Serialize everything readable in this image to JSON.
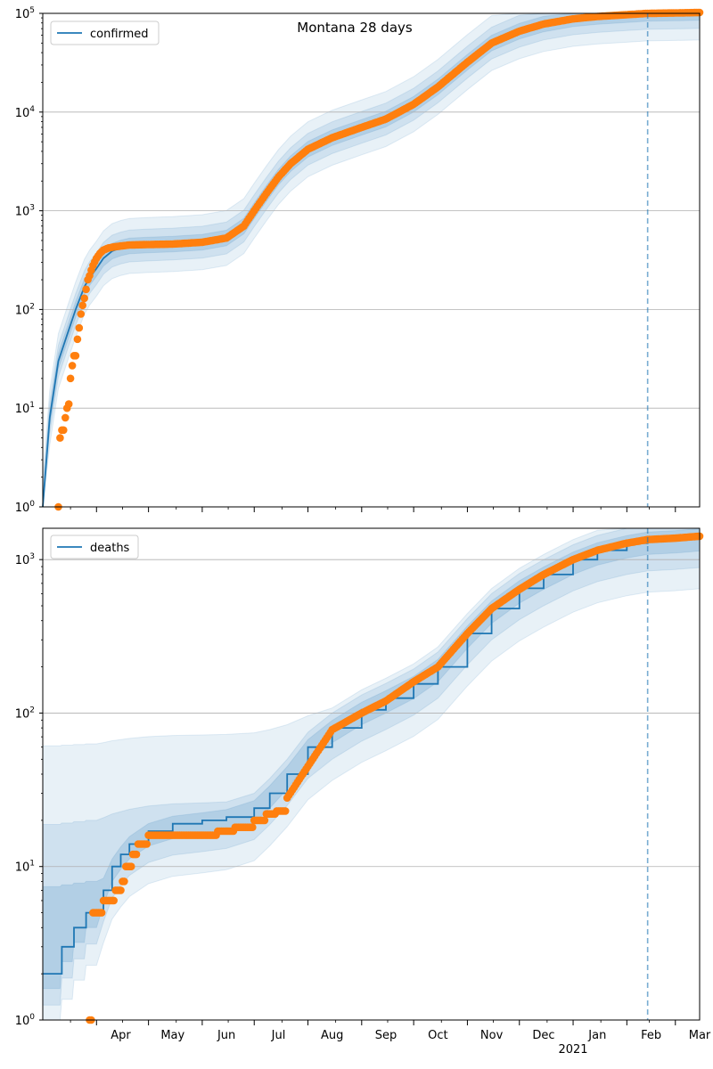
{
  "figure": {
    "title": "Montana 28 days",
    "year_label": "2021"
  },
  "chart_data": [
    {
      "type": "line",
      "panel": "top",
      "yscale": "log",
      "ylim": [
        1,
        100000
      ],
      "xlim": [
        "2020-03-01",
        "2021-03-15"
      ],
      "ytick_labels": [
        "10^0",
        "10^1",
        "10^2",
        "10^3",
        "10^4",
        "10^5"
      ],
      "ytick_values": [
        1,
        10,
        100,
        1000,
        10000,
        100000
      ],
      "xtick_labels": [
        "Apr",
        "May",
        "Jun",
        "Jul",
        "Aug",
        "Sep",
        "Oct",
        "Nov",
        "Dec",
        "Jan",
        "Feb",
        "Mar"
      ],
      "xtick_dates": [
        "2020-04-01",
        "2020-05-01",
        "2020-06-01",
        "2020-07-01",
        "2020-08-01",
        "2020-09-01",
        "2020-10-01",
        "2020-11-01",
        "2020-12-01",
        "2021-01-01",
        "2021-02-01",
        "2021-03-01"
      ],
      "grid": "y-major",
      "legend": {
        "position": "top-left",
        "entries": [
          "confirmed"
        ]
      },
      "forecast_start": "2021-02-13",
      "series": [
        {
          "name": "confirmed",
          "kind": "model-line",
          "color": "#1f77b4",
          "x": [
            "2020-03-01",
            "2020-03-05",
            "2020-03-10",
            "2020-03-15",
            "2020-03-20",
            "2020-03-25",
            "2020-03-28",
            "2020-04-01",
            "2020-04-05",
            "2020-04-10",
            "2020-04-15",
            "2020-04-20",
            "2020-05-01",
            "2020-05-15",
            "2020-06-01",
            "2020-06-15",
            "2020-06-25",
            "2020-07-01",
            "2020-07-08",
            "2020-07-15",
            "2020-07-22",
            "2020-08-01",
            "2020-08-15",
            "2020-09-01",
            "2020-09-15",
            "2020-10-01",
            "2020-10-15",
            "2020-11-01",
            "2020-11-15",
            "2020-12-01",
            "2020-12-15",
            "2021-01-01",
            "2021-01-15",
            "2021-02-01",
            "2021-02-13",
            "2021-03-01",
            "2021-03-15"
          ],
          "y": [
            1,
            8,
            30,
            55,
            100,
            170,
            210,
            260,
            330,
            390,
            420,
            440,
            450,
            460,
            480,
            530,
            700,
            1000,
            1500,
            2200,
            3000,
            4200,
            5500,
            7000,
            8500,
            12000,
            18000,
            32000,
            50000,
            66000,
            78000,
            88000,
            93000,
            97000,
            100000,
            101000,
            102000
          ]
        },
        {
          "name": "confirmed (observed)",
          "kind": "scatter",
          "color": "#ff7f0e",
          "x": [
            "2020-03-10",
            "2020-03-11",
            "2020-03-12",
            "2020-03-13",
            "2020-03-14",
            "2020-03-15",
            "2020-03-16",
            "2020-03-17",
            "2020-03-18",
            "2020-03-19",
            "2020-03-20",
            "2020-03-21",
            "2020-03-22",
            "2020-03-23",
            "2020-03-24",
            "2020-03-25",
            "2020-03-26",
            "2020-03-27",
            "2020-03-28",
            "2020-03-29",
            "2020-03-30",
            "2020-04-01",
            "2020-04-03",
            "2020-04-05",
            "2020-04-08",
            "2020-04-11",
            "2020-04-15",
            "2020-04-20",
            "2020-05-01",
            "2020-05-15",
            "2020-06-01",
            "2020-06-15",
            "2020-06-25",
            "2020-07-01",
            "2020-07-08",
            "2020-07-15",
            "2020-07-22",
            "2020-08-01",
            "2020-08-15",
            "2020-09-01",
            "2020-09-15",
            "2020-10-01",
            "2020-10-15",
            "2020-11-01",
            "2020-11-15",
            "2020-12-01",
            "2020-12-15",
            "2021-01-01",
            "2021-01-15",
            "2021-02-01",
            "2021-02-13",
            "2021-03-01",
            "2021-03-15"
          ],
          "y": [
            1,
            5,
            6,
            6,
            8,
            10,
            11,
            20,
            27,
            34,
            34,
            50,
            65,
            90,
            110,
            130,
            160,
            200,
            220,
            250,
            280,
            330,
            370,
            400,
            420,
            430,
            440,
            450,
            455,
            460,
            480,
            530,
            700,
            1000,
            1500,
            2200,
            3000,
            4200,
            5500,
            7000,
            8500,
            12000,
            18000,
            32000,
            50000,
            66000,
            78000,
            88000,
            93000,
            97000,
            100000,
            101000,
            102000
          ]
        }
      ]
    },
    {
      "type": "line",
      "panel": "bottom",
      "yscale": "log",
      "ylim": [
        1,
        1600
      ],
      "xlim": [
        "2020-03-01",
        "2021-03-15"
      ],
      "ytick_labels": [
        "10^0",
        "10^1",
        "10^2",
        "10^3"
      ],
      "ytick_values": [
        1,
        10,
        100,
        1000
      ],
      "xtick_labels": [
        "Apr",
        "May",
        "Jun",
        "Jul",
        "Aug",
        "Sep",
        "Oct",
        "Nov",
        "Dec",
        "Jan",
        "Feb",
        "Mar"
      ],
      "xtick_dates": [
        "2020-04-01",
        "2020-05-01",
        "2020-06-01",
        "2020-07-01",
        "2020-08-01",
        "2020-09-01",
        "2020-10-01",
        "2020-11-01",
        "2020-12-01",
        "2021-01-01",
        "2021-02-01",
        "2021-03-01"
      ],
      "grid": "y-major",
      "legend": {
        "position": "top-left",
        "entries": [
          "deaths"
        ]
      },
      "forecast_start": "2021-02-13",
      "series": [
        {
          "name": "deaths",
          "kind": "model-line",
          "color": "#1f77b4",
          "x": [
            "2020-03-01",
            "2020-03-11",
            "2020-03-12",
            "2020-03-18",
            "2020-03-19",
            "2020-03-25",
            "2020-03-26",
            "2020-04-01",
            "2020-04-05",
            "2020-04-10",
            "2020-04-15",
            "2020-04-20",
            "2020-05-01",
            "2020-05-15",
            "2020-06-01",
            "2020-06-15",
            "2020-07-01",
            "2020-07-10",
            "2020-07-20",
            "2020-08-01",
            "2020-08-15",
            "2020-09-01",
            "2020-09-15",
            "2020-10-01",
            "2020-10-15",
            "2020-11-01",
            "2020-11-15",
            "2020-12-01",
            "2020-12-15",
            "2021-01-01",
            "2021-01-15",
            "2021-02-01",
            "2021-02-13",
            "2021-03-01",
            "2021-03-15"
          ],
          "y": [
            2,
            2,
            3,
            3,
            4,
            4,
            5,
            5,
            7,
            10,
            12,
            14,
            17,
            19,
            20,
            21,
            24,
            30,
            40,
            60,
            80,
            105,
            125,
            155,
            200,
            330,
            480,
            650,
            800,
            1000,
            1150,
            1280,
            1350,
            1380,
            1420
          ]
        },
        {
          "name": "deaths (observed)",
          "kind": "scatter",
          "color": "#ff7f0e",
          "x": [
            "2020-03-28",
            "2020-03-29",
            "2020-03-30",
            "2020-04-01",
            "2020-04-03",
            "2020-04-05",
            "2020-04-08",
            "2020-04-10",
            "2020-04-12",
            "2020-04-14",
            "2020-04-16",
            "2020-04-18",
            "2020-04-20",
            "2020-04-22",
            "2020-04-25",
            "2020-05-01",
            "2020-05-15",
            "2020-06-01",
            "2020-06-10",
            "2020-06-20",
            "2020-07-01",
            "2020-07-08",
            "2020-07-14",
            "2020-07-20",
            "2020-08-01",
            "2020-08-15",
            "2020-09-01",
            "2020-09-15",
            "2020-10-01",
            "2020-10-15",
            "2020-11-01",
            "2020-11-15",
            "2020-12-01",
            "2020-12-15",
            "2021-01-01",
            "2021-01-15",
            "2021-02-01",
            "2021-02-13",
            "2021-03-01",
            "2021-03-15"
          ],
          "y": [
            1,
            1,
            5,
            5,
            5,
            6,
            6,
            6,
            7,
            7,
            8,
            10,
            10,
            12,
            14,
            16,
            16,
            16,
            17,
            18,
            20,
            22,
            23,
            28,
            45,
            78,
            100,
            120,
            160,
            200,
            330,
            480,
            640,
            800,
            1000,
            1150,
            1280,
            1350,
            1380,
            1420
          ]
        }
      ]
    }
  ]
}
